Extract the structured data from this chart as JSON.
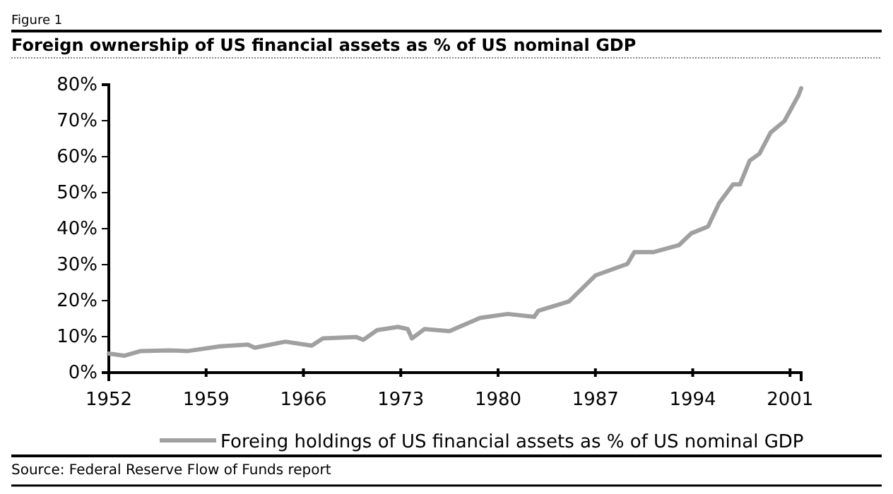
{
  "chart_data": {
    "type": "line",
    "title": "Foreign ownership of US financial assets as % of US nominal GDP",
    "annotations": [
      "Figure 1",
      "Source: Federal Reserve Flow of Funds report"
    ],
    "series": [
      {
        "name": "Foreing holdings of US financial assets as % of US nominal GDP",
        "color": "#a0a0a0",
        "x": [
          1952,
          1953.1,
          1954.3,
          1956.3,
          1957.7,
          1960,
          1962,
          1962.5,
          1964.7,
          1966.6,
          1967.4,
          1969.8,
          1970.3,
          1971.3,
          1972.8,
          1973.5,
          1973.8,
          1974.7,
          1976.5,
          1978.7,
          1980.7,
          1982.6,
          1982.9,
          1985.1,
          1987,
          1989.3,
          1989.8,
          1991.2,
          1993,
          1993.9,
          1995.1,
          1995.9,
          1996.9,
          1997.4,
          1998.1,
          1998.8,
          1999.6,
          2000.6,
          2001.6,
          2001.8
        ],
        "values": [
          5.3,
          4.7,
          6,
          6.2,
          6,
          7.3,
          7.8,
          6.9,
          8.6,
          7.5,
          9.5,
          9.9,
          9.1,
          11.8,
          12.7,
          12.1,
          9.5,
          12.1,
          11.5,
          15.2,
          16.3,
          15.5,
          17.2,
          19.8,
          27,
          30.2,
          33.5,
          33.5,
          35.4,
          38.7,
          40.6,
          47.1,
          52.3,
          52.3,
          58.9,
          60.8,
          66.7,
          69.9,
          77,
          79
        ]
      }
    ],
    "xlim": [
      1952,
      2001.8
    ],
    "xticks": [
      1952,
      1959,
      1966,
      1973,
      1980,
      1987,
      1994,
      2001
    ],
    "ylim": [
      0,
      80
    ],
    "yticks": [
      {
        "value": 0,
        "label": "0%"
      },
      {
        "value": 10,
        "label": "10%"
      },
      {
        "value": 20,
        "label": "20%"
      },
      {
        "value": 30,
        "label": "30%"
      },
      {
        "value": 40,
        "label": "40%"
      },
      {
        "value": 50,
        "label": "50%"
      },
      {
        "value": 60,
        "label": "60%"
      },
      {
        "value": 70,
        "label": "70%"
      },
      {
        "value": 80,
        "label": "80%"
      }
    ],
    "grid": false,
    "legend": "bottom",
    "marker": "none",
    "line_style": "solid"
  }
}
